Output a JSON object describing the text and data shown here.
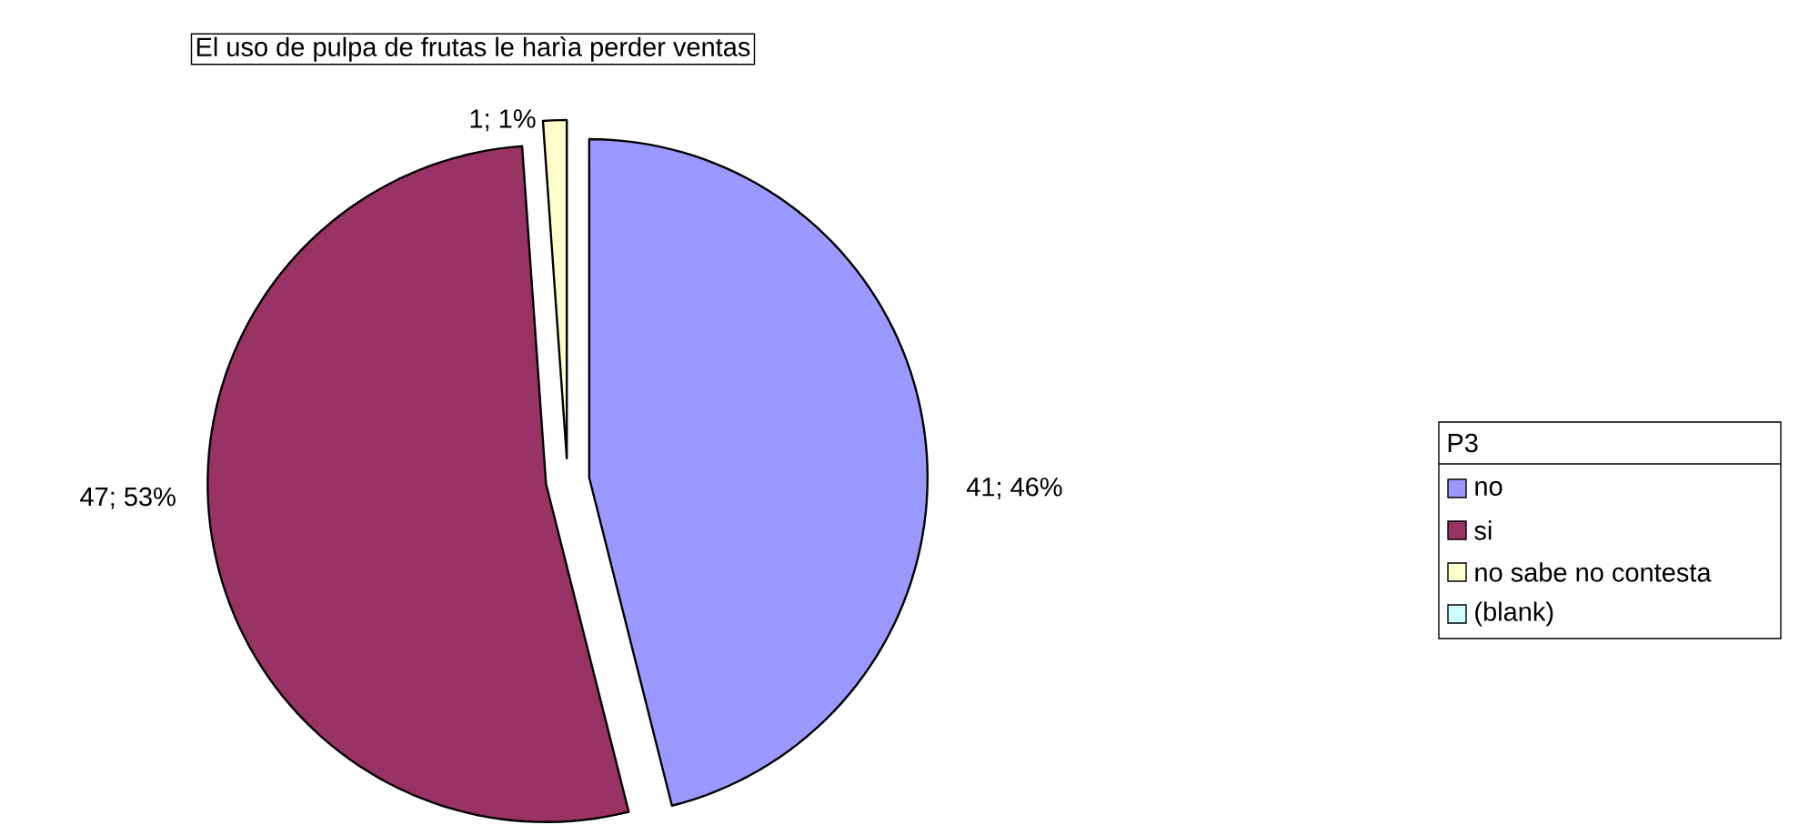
{
  "chart_data": {
    "type": "pie",
    "title": "El uso de pulpa de frutas le harìa perder ventas",
    "categories": [
      "no",
      "si",
      "no sabe no contesta",
      "(blank)"
    ],
    "values": [
      41,
      47,
      1,
      0
    ],
    "colors": [
      "#9999ff",
      "#993366",
      "#ffffcc",
      "#ccffff"
    ],
    "value_labels": [
      "41; 46%",
      "47; 53%",
      "1; 1%",
      null
    ],
    "legend": "right",
    "legend_title": "P3"
  }
}
